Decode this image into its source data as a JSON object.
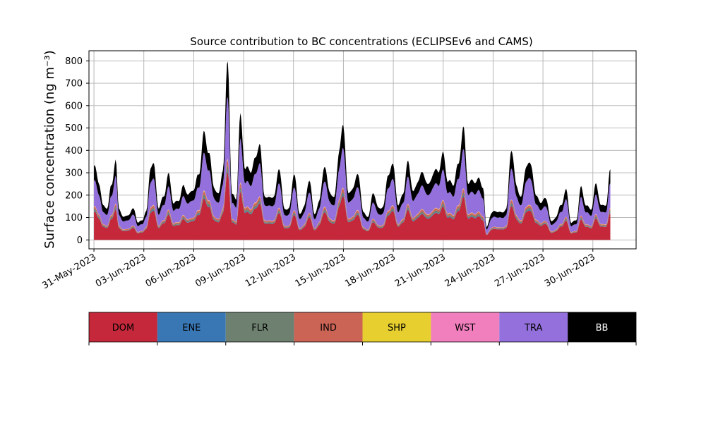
{
  "chart_data": {
    "type": "area",
    "stacked": true,
    "title": "Source contribution to BC concentrations (ECLIPSEv6 and CAMS)",
    "ylabel": "Surface concentration (ng m⁻³)",
    "xlabel": "",
    "ylim": [
      -40,
      845
    ],
    "yticks": [
      0,
      100,
      200,
      300,
      400,
      500,
      600,
      700,
      800
    ],
    "xlim_days": [
      -0.3,
      32.6
    ],
    "x_start_date": "2023-06-01",
    "x_end_date": "2023-07-01",
    "xticks": [
      {
        "day": 0,
        "label": "31-May-2023"
      },
      {
        "day": 3,
        "label": "03-Jun-2023"
      },
      {
        "day": 6,
        "label": "06-Jun-2023"
      },
      {
        "day": 9,
        "label": "09-Jun-2023"
      },
      {
        "day": 12,
        "label": "12-Jun-2023"
      },
      {
        "day": 15,
        "label": "15-Jun-2023"
      },
      {
        "day": 18,
        "label": "18-Jun-2023"
      },
      {
        "day": 21,
        "label": "21-Jun-2023"
      },
      {
        "day": 24,
        "label": "24-Jun-2023"
      },
      {
        "day": 27,
        "label": "27-Jun-2023"
      },
      {
        "day": 30,
        "label": "30-Jun-2023"
      }
    ],
    "grid": true,
    "legend_position": "below",
    "total_profile": [
      [
        0,
        330
      ],
      [
        0.3,
        260
      ],
      [
        0.55,
        150
      ],
      [
        0.8,
        145
      ],
      [
        1.05,
        240
      ],
      [
        1.3,
        360
      ],
      [
        1.5,
        140
      ],
      [
        1.8,
        100
      ],
      [
        2.1,
        115
      ],
      [
        2.4,
        140
      ],
      [
        2.65,
        75
      ],
      [
        2.9,
        90
      ],
      [
        3.15,
        125
      ],
      [
        3.4,
        330
      ],
      [
        3.6,
        330
      ],
      [
        3.9,
        140
      ],
      [
        4.2,
        200
      ],
      [
        4.5,
        290
      ],
      [
        4.8,
        160
      ],
      [
        5.1,
        180
      ],
      [
        5.4,
        240
      ],
      [
        5.7,
        200
      ],
      [
        6.0,
        230
      ],
      [
        6.3,
        290
      ],
      [
        6.6,
        470
      ],
      [
        6.9,
        400
      ],
      [
        7.2,
        240
      ],
      [
        7.5,
        200
      ],
      [
        7.75,
        320
      ],
      [
        8.05,
        800
      ],
      [
        8.3,
        200
      ],
      [
        8.55,
        185
      ],
      [
        8.8,
        545
      ],
      [
        9.1,
        320
      ],
      [
        9.4,
        310
      ],
      [
        9.7,
        355
      ],
      [
        9.95,
        440
      ],
      [
        10.25,
        200
      ],
      [
        10.55,
        185
      ],
      [
        10.85,
        200
      ],
      [
        11.15,
        325
      ],
      [
        11.45,
        135
      ],
      [
        11.75,
        145
      ],
      [
        12.05,
        305
      ],
      [
        12.35,
        115
      ],
      [
        12.65,
        150
      ],
      [
        12.95,
        275
      ],
      [
        13.25,
        115
      ],
      [
        13.55,
        170
      ],
      [
        13.85,
        335
      ],
      [
        14.15,
        220
      ],
      [
        14.45,
        185
      ],
      [
        14.75,
        405
      ],
      [
        15.0,
        510
      ],
      [
        15.3,
        200
      ],
      [
        15.6,
        240
      ],
      [
        15.9,
        295
      ],
      [
        16.2,
        120
      ],
      [
        16.5,
        105
      ],
      [
        16.8,
        215
      ],
      [
        17.1,
        140
      ],
      [
        17.4,
        150
      ],
      [
        17.7,
        300
      ],
      [
        18.0,
        330
      ],
      [
        18.3,
        150
      ],
      [
        18.6,
        215
      ],
      [
        18.9,
        350
      ],
      [
        19.2,
        210
      ],
      [
        19.5,
        270
      ],
      [
        19.8,
        300
      ],
      [
        20.1,
        240
      ],
      [
        20.4,
        300
      ],
      [
        20.7,
        310
      ],
      [
        21.0,
        380
      ],
      [
        21.3,
        260
      ],
      [
        21.6,
        250
      ],
      [
        21.9,
        330
      ],
      [
        22.2,
        500
      ],
      [
        22.5,
        260
      ],
      [
        22.8,
        260
      ],
      [
        23.1,
        270
      ],
      [
        23.4,
        240
      ],
      [
        23.6,
        55
      ],
      [
        23.9,
        120
      ],
      [
        24.2,
        130
      ],
      [
        24.5,
        120
      ],
      [
        24.8,
        140
      ],
      [
        25.1,
        415
      ],
      [
        25.4,
        240
      ],
      [
        25.7,
        190
      ],
      [
        26.0,
        340
      ],
      [
        26.3,
        330
      ],
      [
        26.6,
        190
      ],
      [
        26.9,
        170
      ],
      [
        27.2,
        185
      ],
      [
        27.5,
        80
      ],
      [
        27.8,
        105
      ],
      [
        28.1,
        160
      ],
      [
        28.4,
        220
      ],
      [
        28.7,
        75
      ],
      [
        29.0,
        90
      ],
      [
        29.3,
        235
      ],
      [
        29.6,
        150
      ],
      [
        29.9,
        140
      ],
      [
        30.2,
        250
      ],
      [
        30.5,
        150
      ],
      [
        30.8,
        160
      ],
      [
        31.05,
        310
      ]
    ],
    "series": [
      {
        "name": "DOM",
        "color": "#c4283a",
        "fraction": 0.38
      },
      {
        "name": "ENE",
        "color": "#3877b4",
        "fraction": 0.01
      },
      {
        "name": "FLR",
        "color": "#6e8070",
        "fraction": 0.025
      },
      {
        "name": "IND",
        "color": "#cc6456",
        "fraction": 0.03
      },
      {
        "name": "SHP",
        "color": "#e6cf2e",
        "fraction": 0.005
      },
      {
        "name": "WST",
        "color": "#f17fbe",
        "fraction": 0.005
      },
      {
        "name": "TRA",
        "color": "#9370db",
        "fraction": 0.345
      },
      {
        "name": "BB",
        "color": "#000000",
        "fraction": 0.2
      }
    ]
  },
  "legend": [
    {
      "label": "DOM",
      "color": "#c4283a",
      "text_color": "#000000"
    },
    {
      "label": "ENE",
      "color": "#3877b4",
      "text_color": "#000000"
    },
    {
      "label": "FLR",
      "color": "#6e8070",
      "text_color": "#000000"
    },
    {
      "label": "IND",
      "color": "#cc6456",
      "text_color": "#000000"
    },
    {
      "label": "SHP",
      "color": "#e6cf2e",
      "text_color": "#000000"
    },
    {
      "label": "WST",
      "color": "#f17fbe",
      "text_color": "#000000"
    },
    {
      "label": "TRA",
      "color": "#9370db",
      "text_color": "#000000"
    },
    {
      "label": "BB",
      "color": "#000000",
      "text_color": "#ffffff"
    }
  ]
}
